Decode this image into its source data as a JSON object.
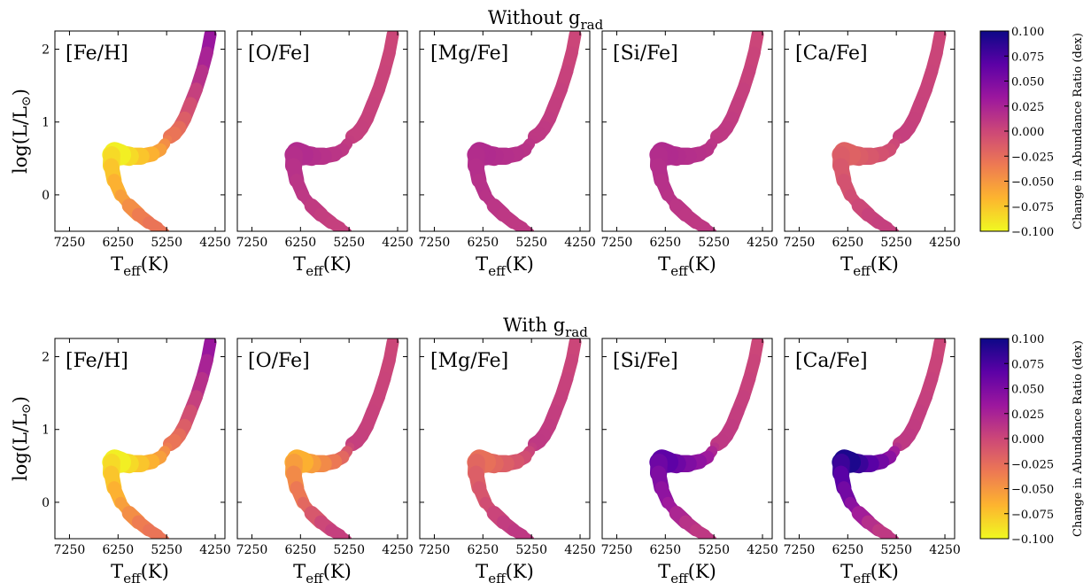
{
  "chart_data": {
    "type": "heatmap",
    "description_free_note": "",
    "rows": [
      {
        "title": "Without g",
        "title_sub": "rad",
        "panel_fill": {
          "[Fe/H]": "#cd3f81",
          "[O/Fe]": "#c8447e",
          "[Mg/Fe]": "#c9437e",
          "[Si/Fe]": "#c9437e",
          "[Ca/Fe]": "#c8447e"
        }
      },
      {
        "title": "With g",
        "title_sub": "rad",
        "panel_fill": {
          "[Fe/H]": "#cd3f81",
          "[O/Fe]": "#c8447e",
          "[Mg/Fe]": "#c9437e",
          "[Si/Fe]": "#c9437e",
          "[Ca/Fe]": "#c8447e"
        }
      }
    ],
    "panels": [
      "[Fe/H]",
      "[O/Fe]",
      "[Mg/Fe]",
      "[Si/Fe]",
      "[Ca/Fe]"
    ],
    "xlabel": "T",
    "xlabel_sub": "eff",
    "xlabel_tail": "(K)",
    "ylabel": "log(L/L",
    "ylabel_sun": "⊙",
    "ylabel_tail": ")",
    "x_ticks": [
      "7250",
      "6250",
      "5250",
      "4250"
    ],
    "x_tick_values": [
      7250,
      6250,
      5250,
      4250
    ],
    "xlim": [
      7550,
      4050
    ],
    "y_ticks": [
      "0",
      "1",
      "2"
    ],
    "y_tick_values": [
      0,
      1,
      2
    ],
    "ylim": [
      -0.5,
      2.25
    ],
    "colorbar": {
      "label": "Change in Abundance Ratio (dex)",
      "ticks": [
        "0.100",
        "0.075",
        "0.050",
        "0.025",
        "0.000",
        "−0.025",
        "−0.050",
        "−0.075",
        "−0.100"
      ],
      "tick_values": [
        0.1,
        0.075,
        0.05,
        0.025,
        0.0,
        -0.025,
        -0.05,
        -0.075,
        -0.1
      ],
      "range": [
        -0.1,
        0.1
      ],
      "colormap": "plasma",
      "colors": [
        "#f0f921",
        "#fdb42f",
        "#ed7953",
        "#cc4778",
        "#9c179e",
        "#5c01a6",
        "#0d0887"
      ]
    },
    "track": {
      "teff": [
        4350,
        4420,
        4520,
        4640,
        4760,
        4880,
        4990,
        5090,
        5180,
        5230,
        5290,
        5380,
        5550,
        5780,
        6020,
        6200,
        6320,
        6380,
        6390,
        6330,
        6200,
        6020,
        5830,
        5620,
        5440,
        5300
      ],
      "logL": [
        2.2,
        1.95,
        1.7,
        1.45,
        1.25,
        1.05,
        0.92,
        0.84,
        0.8,
        0.76,
        0.7,
        0.62,
        0.56,
        0.53,
        0.53,
        0.55,
        0.58,
        0.55,
        0.4,
        0.2,
        0.0,
        -0.15,
        -0.27,
        -0.38,
        -0.45,
        -0.52
      ]
    },
    "series": [
      {
        "row": "Without g_rad",
        "panel": "[Fe/H]",
        "tail_value": 0.04,
        "turnoff_value": -0.1,
        "body_value": -0.03
      },
      {
        "row": "Without g_rad",
        "panel": "[O/Fe]",
        "tail_value": 0.0,
        "turnoff_value": 0.02,
        "body_value": 0.005
      },
      {
        "row": "Without g_rad",
        "panel": "[Mg/Fe]",
        "tail_value": 0.0,
        "turnoff_value": 0.02,
        "body_value": 0.01
      },
      {
        "row": "Without g_rad",
        "panel": "[Si/Fe]",
        "tail_value": 0.0,
        "turnoff_value": 0.02,
        "body_value": 0.01
      },
      {
        "row": "Without g_rad",
        "panel": "[Ca/Fe]",
        "tail_value": 0.0,
        "turnoff_value": -0.02,
        "body_value": 0.005
      },
      {
        "row": "With g_rad",
        "panel": "[Fe/H]",
        "tail_value": 0.04,
        "turnoff_value": -0.1,
        "body_value": -0.03
      },
      {
        "row": "With g_rad",
        "panel": "[O/Fe]",
        "tail_value": 0.0,
        "turnoff_value": -0.07,
        "body_value": 0.005
      },
      {
        "row": "With g_rad",
        "panel": "[Mg/Fe]",
        "tail_value": 0.0,
        "turnoff_value": -0.03,
        "body_value": 0.01
      },
      {
        "row": "With g_rad",
        "panel": "[Si/Fe]",
        "tail_value": 0.0,
        "turnoff_value": 0.07,
        "body_value": 0.01
      },
      {
        "row": "With g_rad",
        "panel": "[Ca/Fe]",
        "tail_value": 0.0,
        "turnoff_value": 0.1,
        "body_value": 0.01
      }
    ],
    "grid": false,
    "legend": "none"
  }
}
